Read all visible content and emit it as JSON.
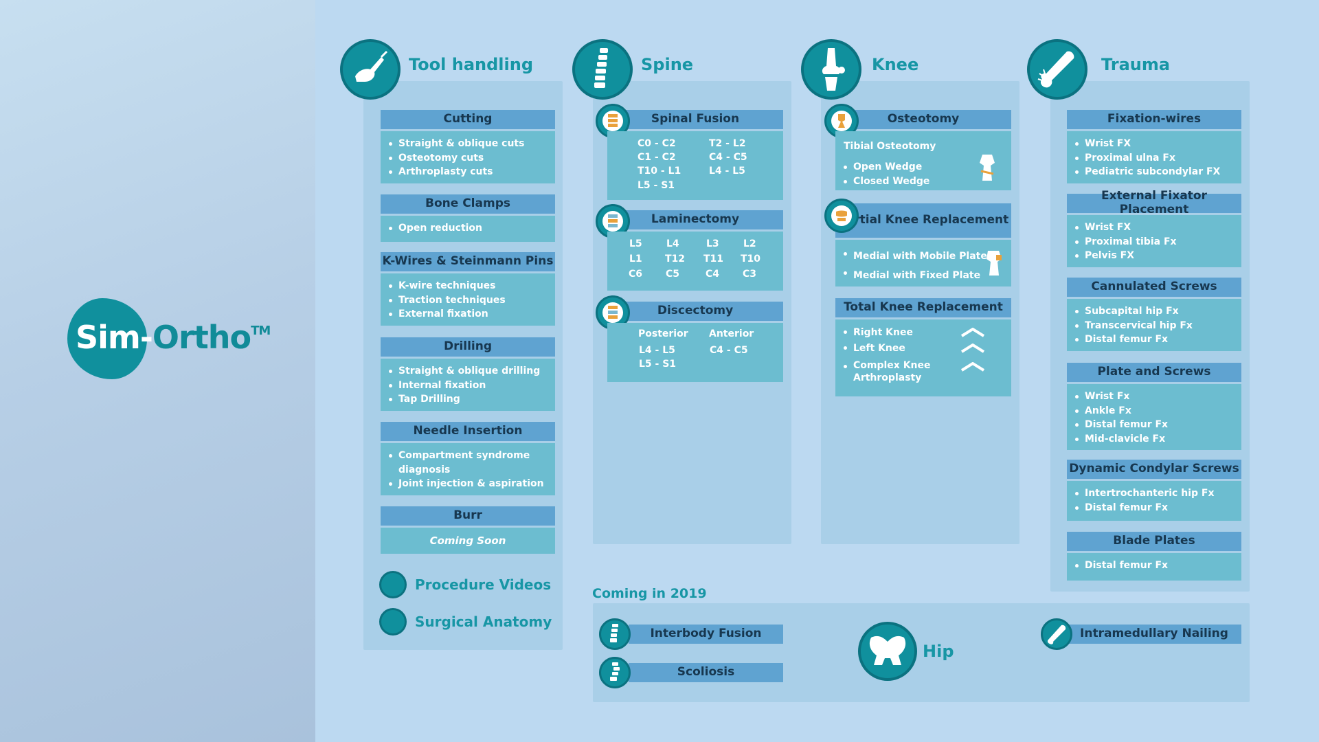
{
  "brand": {
    "part1": "Sim-",
    "part2": "Ortho",
    "tm": "TM"
  },
  "tool_handling": {
    "title": "Tool handling",
    "sections": [
      {
        "title": "Cutting",
        "items": [
          "Straight & oblique cuts",
          "Osteotomy cuts",
          "Arthroplasty cuts"
        ]
      },
      {
        "title": "Bone Clamps",
        "items": [
          "Open reduction"
        ]
      },
      {
        "title": "K-Wires & Steinmann Pins",
        "items": [
          "K-wire techniques",
          "Traction techniques",
          "External fixation"
        ]
      },
      {
        "title": "Drilling",
        "items": [
          "Straight & oblique drilling",
          "Internal fixation",
          "Tap Drilling"
        ]
      },
      {
        "title": "Needle Insertion",
        "items": [
          "Compartment syndrome diagnosis",
          "Joint injection & aspiration"
        ]
      },
      {
        "title": "Burr",
        "coming": "Coming Soon"
      }
    ],
    "links": [
      "Procedure Videos",
      "Surgical Anatomy"
    ]
  },
  "spine": {
    "title": "Spine",
    "fusion": {
      "title": "Spinal Fusion",
      "left": [
        "C0  -  C2",
        "C1  -  C2",
        "T10 -  L1",
        "L5  -  S1"
      ],
      "right": [
        "T2  -  L2",
        "C4  -  C5",
        "L4  -  L5"
      ]
    },
    "laminectomy": {
      "title": "Laminectomy",
      "rows": [
        [
          "L5",
          "L4",
          "L3",
          "L2"
        ],
        [
          "L1",
          "T12",
          "T11",
          "T10"
        ],
        [
          "C6",
          "C5",
          "C4",
          "C3"
        ]
      ]
    },
    "discectomy": {
      "title": "Discectomy",
      "posterior_label": "Posterior",
      "anterior_label": "Anterior",
      "posterior": [
        "L4  -  L5",
        "L5  -  S1"
      ],
      "anterior": [
        "C4  -  C5"
      ]
    }
  },
  "knee": {
    "title": "Knee",
    "osteotomy": {
      "title": "Osteotomy",
      "subtitle": "Tibial Osteotomy",
      "items": [
        "Open Wedge",
        "Closed Wedge"
      ]
    },
    "partial": {
      "title": "Partial Knee Replacement",
      "items": [
        "Medial with Mobile Plate",
        "Medial with Fixed Plate"
      ]
    },
    "total": {
      "title": "Total Knee Replacement",
      "items": [
        "Right Knee",
        "Left Knee",
        "Complex Knee Arthroplasty"
      ]
    }
  },
  "trauma": {
    "title": "Trauma",
    "sections": [
      {
        "title": "Fixation-wires",
        "items": [
          "Wrist FX",
          "Proximal ulna Fx",
          "Pediatric subcondylar FX"
        ]
      },
      {
        "title": "External Fixator Placement",
        "items": [
          "Wrist FX",
          "Proximal tibia Fx",
          "Pelvis FX"
        ]
      },
      {
        "title": "Cannulated Screws",
        "items": [
          "Subcapital hip Fx",
          "Transcervical hip Fx",
          "Distal femur Fx"
        ]
      },
      {
        "title": "Plate and Screws",
        "items": [
          "Wrist Fx",
          "Ankle Fx",
          "Distal femur Fx",
          "Mid-clavicle Fx"
        ]
      },
      {
        "title": "Dynamic Condylar Screws",
        "items": [
          "Intertrochanteric hip Fx",
          "Distal femur Fx"
        ]
      },
      {
        "title": "Blade Plates",
        "items": [
          "Distal femur Fx"
        ]
      }
    ]
  },
  "coming_2019": {
    "title": "Coming in 2019",
    "interbody": "Interbody Fusion",
    "scoliosis": "Scoliosis",
    "hip": "Hip",
    "nailing": "Intramedullary Nailing"
  }
}
